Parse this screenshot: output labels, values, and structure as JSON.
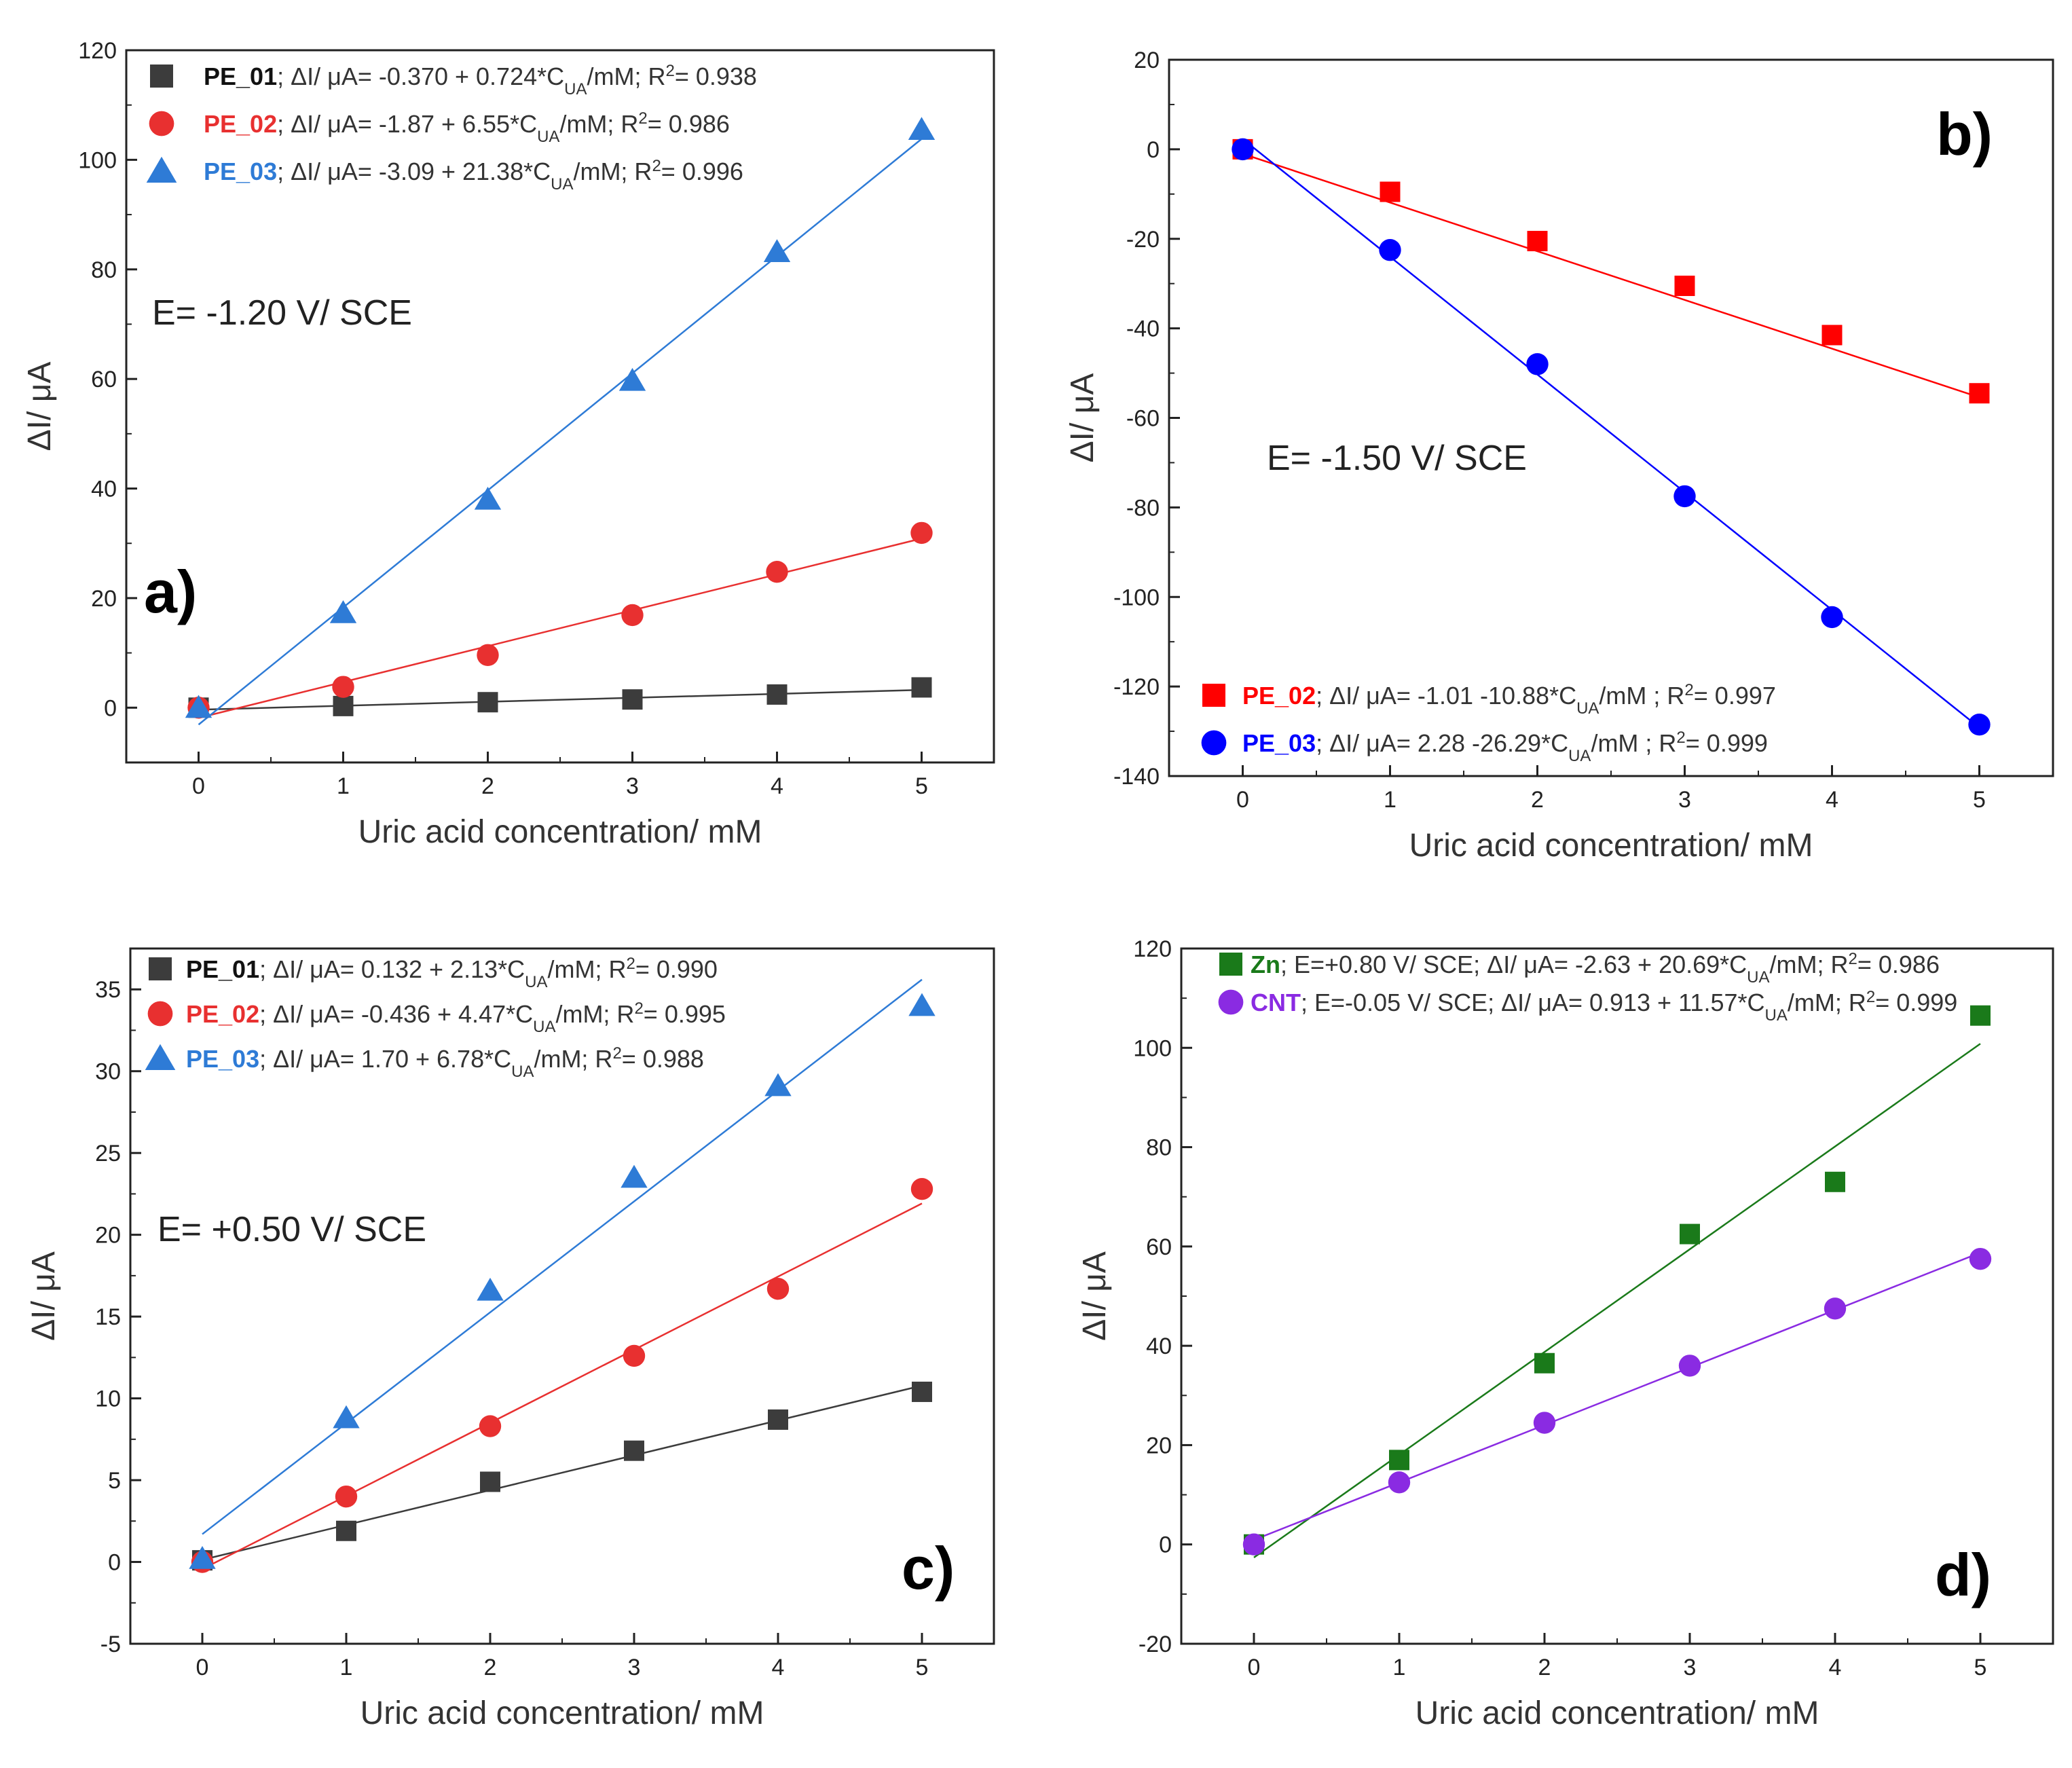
{
  "chart_data": [
    {
      "id": "a",
      "type": "scatter",
      "panel_label": "a)",
      "annotation": "E= -1.20 V/ SCE",
      "xlabel": "Uric acid concentration/ mM",
      "ylabel": "ΔI/ μA",
      "xlim": [
        -0.5,
        5.5
      ],
      "ylim": [
        -10,
        120
      ],
      "xticks": [
        0,
        1,
        2,
        3,
        4,
        5
      ],
      "yticks": [
        0,
        20,
        40,
        60,
        80,
        100,
        120
      ],
      "x": [
        0,
        1,
        2,
        3,
        4,
        5
      ],
      "legend_position": "top-left",
      "series": [
        {
          "name": "PE_01",
          "color": "#3c3c3c",
          "marker": "square",
          "values": [
            0.0,
            0.3,
            1.0,
            1.5,
            2.4,
            3.7
          ],
          "fit": {
            "intercept": -0.37,
            "slope": 0.724
          },
          "eq": ";  ΔI/ μA= -0.370 + 0.724*C",
          "sub": "UA",
          "eq2": "/mM; R",
          "sup": "2",
          "eq3": "= 0.938"
        },
        {
          "name": "PE_02",
          "color": "#e83030",
          "marker": "circle",
          "values": [
            0.0,
            3.8,
            9.6,
            16.9,
            24.8,
            31.9
          ],
          "fit": {
            "intercept": -1.87,
            "slope": 6.55
          },
          "eq": ";  ΔI/ μA= -1.87 + 6.55*C",
          "sub": "UA",
          "eq2": "/mM; R",
          "sup": "2",
          "eq3": "= 0.986"
        },
        {
          "name": "PE_03",
          "color": "#2e7bd6",
          "marker": "triangle",
          "values": [
            0.0,
            17.3,
            38.0,
            59.7,
            83.2,
            105.5
          ],
          "fit": {
            "intercept": -3.09,
            "slope": 21.38
          },
          "eq": ";  ΔI/ μA= -3.09 + 21.38*C",
          "sub": "UA",
          "eq2": "/mM; R",
          "sup": "2",
          "eq3": "= 0.996"
        }
      ]
    },
    {
      "id": "b",
      "type": "scatter",
      "panel_label": "b)",
      "annotation": "E= -1.50 V/ SCE",
      "xlabel": "Uric acid concentration/ mM",
      "ylabel": "ΔI/ μA",
      "xlim": [
        -0.5,
        5.5
      ],
      "ylim": [
        -140,
        20
      ],
      "xticks": [
        0,
        1,
        2,
        3,
        4,
        5
      ],
      "yticks": [
        -140,
        -120,
        -100,
        -80,
        -60,
        -40,
        -20,
        0,
        20
      ],
      "x": [
        0,
        1,
        2,
        3,
        4,
        5
      ],
      "legend_position": "bottom-left",
      "series": [
        {
          "name": "PE_02",
          "color": "#ff0000",
          "marker": "square",
          "values": [
            0.0,
            -9.5,
            -20.5,
            -30.5,
            -41.5,
            -54.5
          ],
          "fit": {
            "intercept": -1.01,
            "slope": -10.88
          },
          "eq": "; ΔI/ μA= -1.01 -10.88*C",
          "sub": "UA",
          "eq2": "/mM ; R",
          "sup": "2",
          "eq3": "= 0.997"
        },
        {
          "name": "PE_03",
          "color": "#0000ff",
          "marker": "circle",
          "values": [
            0.0,
            -22.5,
            -48.0,
            -77.5,
            -104.5,
            -128.5
          ],
          "fit": {
            "intercept": 2.28,
            "slope": -26.29
          },
          "eq": "; ΔI/ μA= 2.28 -26.29*C",
          "sub": "UA",
          "eq2": "/mM ; R",
          "sup": "2",
          "eq3": "= 0.999"
        }
      ]
    },
    {
      "id": "c",
      "type": "scatter",
      "panel_label": "c)",
      "annotation": "E= +0.50 V/ SCE",
      "xlabel": "Uric acid concentration/ mM",
      "ylabel": "ΔI/ μA",
      "xlim": [
        -0.5,
        5.5
      ],
      "ylim": [
        -5,
        37.5
      ],
      "xticks": [
        0,
        1,
        2,
        3,
        4,
        5
      ],
      "yticks": [
        -5,
        0,
        5,
        10,
        15,
        20,
        25,
        30,
        35
      ],
      "x": [
        0,
        1,
        2,
        3,
        4,
        5
      ],
      "legend_position": "top-left",
      "series": [
        {
          "name": "PE_01",
          "color": "#3c3c3c",
          "marker": "square",
          "values": [
            0.1,
            1.9,
            4.9,
            6.8,
            8.7,
            10.4
          ],
          "fit": {
            "intercept": 0.132,
            "slope": 2.13
          },
          "eq": "; ΔI/ μA= 0.132 + 2.13*C",
          "sub": "UA",
          "eq2": "/mM; R",
          "sup": "2",
          "eq3": "= 0.990"
        },
        {
          "name": "PE_02",
          "color": "#e83030",
          "marker": "circle",
          "values": [
            0.0,
            4.0,
            8.3,
            12.6,
            16.7,
            22.8
          ],
          "fit": {
            "intercept": -0.436,
            "slope": 4.47
          },
          "eq": "; ΔI/ μA= -0.436 + 4.47*C",
          "sub": "UA",
          "eq2": "/mM; R",
          "sup": "2",
          "eq3": "= 0.995"
        },
        {
          "name": "PE_03",
          "color": "#2e7bd6",
          "marker": "triangle",
          "values": [
            0.2,
            8.8,
            16.6,
            23.5,
            29.1,
            34.0
          ],
          "fit": {
            "intercept": 1.7,
            "slope": 6.78
          },
          "eq": "; ΔI/ μA= 1.70 + 6.78*C",
          "sub": "UA",
          "eq2": "/mM; R",
          "sup": "2",
          "eq3": "= 0.988"
        }
      ]
    },
    {
      "id": "d",
      "type": "scatter",
      "panel_label": "d)",
      "annotation": "",
      "xlabel": "Uric acid concentration/ mM",
      "ylabel": "ΔI/ μA",
      "xlim": [
        -0.5,
        5.5
      ],
      "ylim": [
        -20,
        120
      ],
      "xticks": [
        0,
        1,
        2,
        3,
        4,
        5
      ],
      "yticks": [
        -20,
        0,
        20,
        40,
        60,
        80,
        100,
        120
      ],
      "x": [
        0,
        1,
        2,
        3,
        4,
        5
      ],
      "legend_position": "top-left",
      "series": [
        {
          "name": "Zn",
          "color": "#1a7a1a",
          "marker": "square",
          "values": [
            0.0,
            17.0,
            36.5,
            62.5,
            73.0,
            106.5
          ],
          "fit": {
            "intercept": -2.63,
            "slope": 20.69
          },
          "eq": "; E=+0.80 V/ SCE; ΔI/ μA= -2.63 + 20.69*C",
          "sub": "UA",
          "eq2": "/mM; R",
          "sup": "2",
          "eq3": "= 0.986"
        },
        {
          "name": "CNT",
          "color": "#8a2be2",
          "marker": "circle",
          "values": [
            0.0,
            12.5,
            24.5,
            36.0,
            47.5,
            57.5
          ],
          "fit": {
            "intercept": 0.913,
            "slope": 11.57
          },
          "eq": "; E=-0.05 V/ SCE; ΔI/ μA= 0.913 + 11.57*C",
          "sub": "UA",
          "eq2": "/mM; R",
          "sup": "2",
          "eq3": "= 0.999"
        }
      ]
    }
  ]
}
